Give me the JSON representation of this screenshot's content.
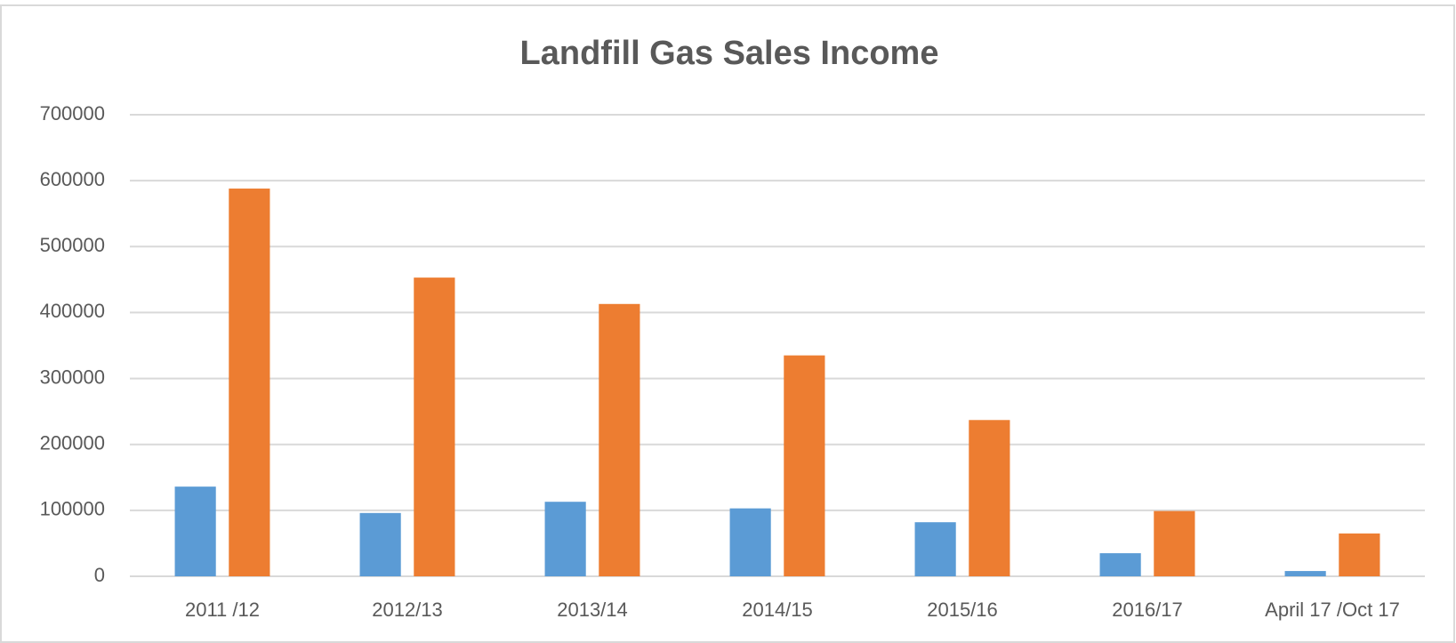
{
  "chart_data": {
    "type": "bar",
    "title": "Landfill Gas Sales Income",
    "categories": [
      "2011 /12",
      "2012/13",
      "2013/14",
      "2014/15",
      "2015/16",
      "2016/17",
      "April 17 /Oct 17"
    ],
    "series": [
      {
        "color": "#5b9bd5",
        "values": [
          136000,
          96000,
          113000,
          103000,
          82000,
          35000,
          8000
        ]
      },
      {
        "color": "#ed7d31",
        "values": [
          588000,
          453000,
          413000,
          335000,
          237000,
          99000,
          65000
        ]
      }
    ],
    "ylim": [
      0,
      700000
    ],
    "yticks": [
      0,
      100000,
      200000,
      300000,
      400000,
      500000,
      600000,
      700000
    ],
    "grid": true
  }
}
